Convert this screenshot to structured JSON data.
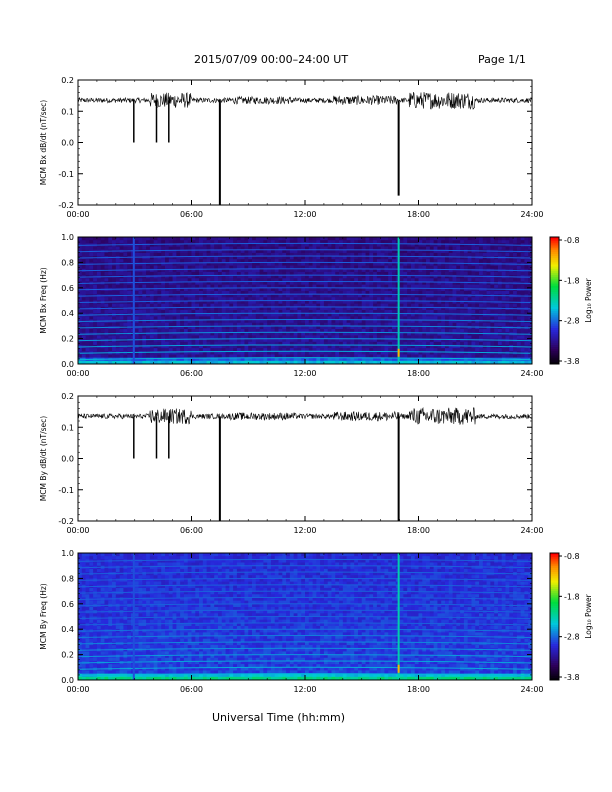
{
  "header": {
    "title": "2015/07/09  00:00–24:00 UT",
    "page": "Page 1/1"
  },
  "footer": {
    "xlabel": "Universal Time (hh:mm)"
  },
  "colors": {
    "spec_low": "#000000",
    "spec_mid": "#1f2fd0",
    "spec_mid2": "#00c8c8",
    "spec_high": "#ff0000",
    "trace": "#000000"
  },
  "colorbar": {
    "title": "Log₁₀ Power",
    "ticks": [
      "-0.8",
      "-1.8",
      "-2.8",
      "-3.8"
    ]
  },
  "chart_data": [
    {
      "type": "line",
      "ylabel": "MCM Bx dB/dt (nT/sec)",
      "ylim": [
        -0.2,
        0.2
      ],
      "yticks": [
        "0.2",
        "0.1",
        "0.0",
        "-0.1",
        "-0.2"
      ],
      "xticks": [
        "00:00",
        "06:00",
        "12:00",
        "18:00",
        "24:00"
      ],
      "xlim": [
        0,
        24
      ],
      "baseline": 0.135,
      "spikes": [
        {
          "x": 2.95,
          "y": 0.0
        },
        {
          "x": 4.15,
          "y": 0.0
        },
        {
          "x": 4.8,
          "y": 0.0
        },
        {
          "x": 7.5,
          "y": -0.2
        },
        {
          "x": 16.95,
          "y": -0.17
        }
      ]
    },
    {
      "type": "heatmap",
      "ylabel": "MCM Bx Freq (Hz)",
      "ylim": [
        0,
        1
      ],
      "yticks": [
        "1.0",
        "0.8",
        "0.6",
        "0.4",
        "0.2",
        "0.0"
      ],
      "xticks": [
        "00:00",
        "06:00",
        "12:00",
        "18:00",
        "24:00"
      ],
      "xlim": [
        0,
        24
      ],
      "vertical_lines": [
        2.95,
        16.95
      ]
    },
    {
      "type": "line",
      "ylabel": "MCM By dB/dt (nT/sec)",
      "ylim": [
        -0.2,
        0.2
      ],
      "yticks": [
        "0.2",
        "0.1",
        "0.0",
        "-0.1",
        "-0.2"
      ],
      "xticks": [
        "00:00",
        "06:00",
        "12:00",
        "18:00",
        "24:00"
      ],
      "xlim": [
        0,
        24
      ],
      "baseline": 0.135,
      "spikes": [
        {
          "x": 2.95,
          "y": 0.0
        },
        {
          "x": 4.15,
          "y": 0.0
        },
        {
          "x": 4.8,
          "y": 0.0
        },
        {
          "x": 7.5,
          "y": -0.2
        },
        {
          "x": 16.95,
          "y": -0.2
        }
      ]
    },
    {
      "type": "heatmap",
      "ylabel": "MCM By Freq (Hz)",
      "ylim": [
        0,
        1
      ],
      "yticks": [
        "1.0",
        "0.8",
        "0.6",
        "0.4",
        "0.2",
        "0.0"
      ],
      "xticks": [
        "00:00",
        "06:00",
        "12:00",
        "18:00",
        "24:00"
      ],
      "xlim": [
        0,
        24
      ],
      "vertical_lines": [
        2.95,
        16.95
      ]
    }
  ]
}
